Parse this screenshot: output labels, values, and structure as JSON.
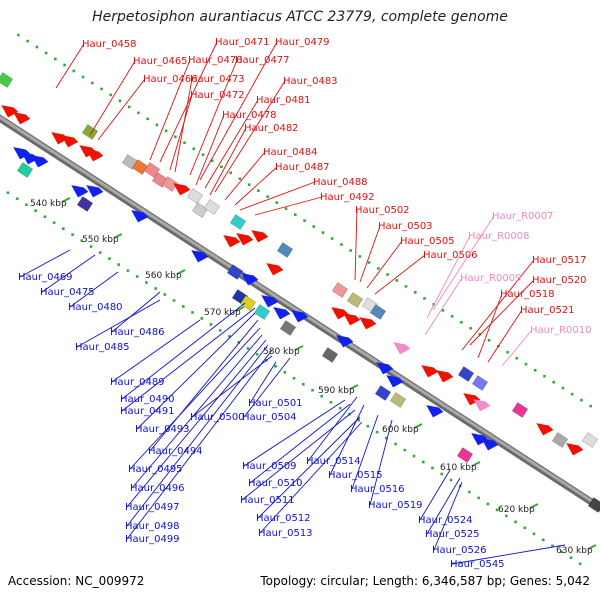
{
  "title": "Herpetosiphon aurantiacus ATCC 23779, complete genome",
  "footer": {
    "accession": "Accession: NC_009972",
    "topology": "Topology: circular; Length: 6,346,587 bp; Genes: 5,042"
  },
  "colors": {
    "forward_gene": "#ee1100",
    "reverse_gene": "#1122ee",
    "rna_gene": "#f08cc8",
    "backbone": "#888888",
    "tick": "#33aa33"
  },
  "ruler": [
    "540 kbp",
    "550 kbp",
    "560 kbp",
    "570 kbp",
    "580 kbp",
    "590 kbp",
    "600 kbp",
    "610 kbp",
    "620 kbp",
    "630 kbp"
  ],
  "forward_labels": [
    "Haur_0458",
    "Haur_0465",
    "Haur_0466",
    "Haur_0470",
    "Haur_0471",
    "Haur_0472",
    "Haur_0473",
    "Haur_0477",
    "Haur_0478",
    "Haur_0479",
    "Haur_0481",
    "Haur_0482",
    "Haur_0483",
    "Haur_0484",
    "Haur_0487",
    "Haur_0488",
    "Haur_0492",
    "Haur_0502",
    "Haur_0503",
    "Haur_0505",
    "Haur_0506",
    "Haur_0517",
    "Haur_0518",
    "Haur_0520",
    "Haur_0521"
  ],
  "rna_labels": [
    "Haur_R0007",
    "Haur_R0008",
    "Haur_R0009",
    "Haur_R0010"
  ],
  "reverse_labels": [
    "Haur_0469",
    "Haur_0475",
    "Haur_0480",
    "Haur_0485",
    "Haur_0486",
    "Haur_0489",
    "Haur_0490",
    "Haur_0491",
    "Haur_0493",
    "Haur_0494",
    "Haur_0495",
    "Haur_0496",
    "Haur_0497",
    "Haur_0498",
    "Haur_0499",
    "Haur_0500",
    "Haur_0501",
    "Haur_0504",
    "Haur_0509",
    "Haur_0510",
    "Haur_0511",
    "Haur_0512",
    "Haur_0513",
    "Haur_0514",
    "Haur_0515",
    "Haur_0516",
    "Haur_0519",
    "Haur_0524",
    "Haur_0525",
    "Haur_0526",
    "Haur_0545"
  ]
}
